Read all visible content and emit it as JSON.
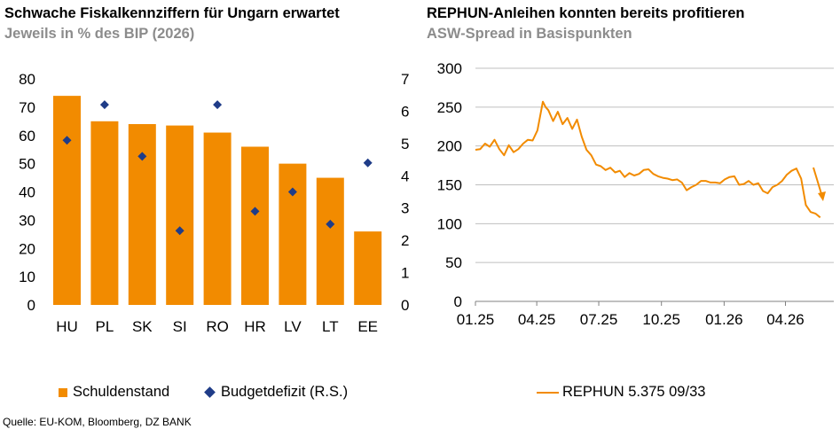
{
  "left_chart": {
    "title": "Schwache Fiskalkennziffern für Ungarn erwartet",
    "subtitle": "Jeweils in % des BIP (2026)"
  },
  "right_chart": {
    "title": "REPHUN-Anleihen konnten bereits profitieren",
    "subtitle": "ASW-Spread in Basispunkten"
  },
  "legend": {
    "debt": "Schuldenstand",
    "deficit": "Budgetdefizit (R.S.)",
    "series": "REPHUN 5.375 09/33"
  },
  "source": "Quelle: EU-KOM, Bloomberg, DZ BANK",
  "colors": {
    "bar": "#f28b00",
    "diamond": "#1f3c88",
    "line": "#f28b00",
    "grid": "#bfbfbf"
  },
  "chart_data": [
    {
      "type": "bar",
      "categories": [
        "HU",
        "PL",
        "SK",
        "SI",
        "RO",
        "HR",
        "LV",
        "LT",
        "EE"
      ],
      "series": [
        {
          "name": "Schuldenstand",
          "axis": "left",
          "values": [
            74,
            65,
            64,
            63.5,
            61,
            56,
            50,
            45,
            26
          ]
        },
        {
          "name": "Budgetdefizit (R.S.)",
          "axis": "right",
          "marker": "diamond",
          "values": [
            5.1,
            6.2,
            4.6,
            2.3,
            6.2,
            2.9,
            3.5,
            2.5,
            4.4
          ]
        }
      ],
      "ylim": [
        0,
        80
      ],
      "yticks": [
        0,
        10,
        20,
        30,
        40,
        50,
        60,
        70,
        80
      ],
      "y2lim": [
        0,
        7
      ],
      "y2ticks": [
        0,
        1,
        2,
        3,
        4,
        5,
        6,
        7
      ],
      "grid": false,
      "legend_position": "bottom"
    },
    {
      "type": "line",
      "series": [
        {
          "name": "REPHUN 5.375 09/33",
          "x": [
            "2025-01-01",
            "2025-01-08",
            "2025-01-15",
            "2025-01-22",
            "2025-01-29",
            "2025-02-05",
            "2025-02-12",
            "2025-02-19",
            "2025-02-26",
            "2025-03-05",
            "2025-03-12",
            "2025-03-19",
            "2025-03-26",
            "2025-04-02",
            "2025-04-07",
            "2025-04-10",
            "2025-04-14",
            "2025-04-18",
            "2025-04-25",
            "2025-05-02",
            "2025-05-09",
            "2025-05-16",
            "2025-05-23",
            "2025-05-30",
            "2025-06-06",
            "2025-06-13",
            "2025-06-20",
            "2025-06-27",
            "2025-07-04",
            "2025-07-11",
            "2025-07-18",
            "2025-07-25",
            "2025-08-01",
            "2025-08-08",
            "2025-08-15",
            "2025-08-22",
            "2025-08-29",
            "2025-09-05",
            "2025-09-12",
            "2025-09-19",
            "2025-09-26",
            "2025-10-03",
            "2025-10-10",
            "2025-10-17",
            "2025-10-24",
            "2025-10-31",
            "2025-11-07",
            "2025-11-14",
            "2025-11-21",
            "2025-11-28",
            "2025-12-05",
            "2025-12-12",
            "2025-12-19",
            "2025-12-26",
            "2026-01-02",
            "2026-01-09",
            "2026-01-16",
            "2026-01-23",
            "2026-01-30",
            "2026-02-06",
            "2026-02-13",
            "2026-02-20",
            "2026-02-27",
            "2026-03-06",
            "2026-03-13",
            "2026-03-20",
            "2026-03-27",
            "2026-04-03",
            "2026-04-10",
            "2026-04-17",
            "2026-04-24",
            "2026-05-01",
            "2026-05-08",
            "2026-05-15",
            "2026-05-22"
          ],
          "values": [
            195,
            196,
            203,
            199,
            208,
            196,
            188,
            201,
            192,
            196,
            203,
            208,
            207,
            220,
            243,
            257,
            250,
            246,
            232,
            244,
            228,
            236,
            222,
            234,
            212,
            195,
            188,
            176,
            174,
            169,
            172,
            166,
            168,
            160,
            165,
            162,
            164,
            169,
            170,
            164,
            161,
            159,
            158,
            156,
            157,
            153,
            143,
            147,
            150,
            155,
            155,
            153,
            153,
            152,
            157,
            160,
            161,
            150,
            151,
            155,
            150,
            152,
            142,
            139,
            147,
            150,
            155,
            163,
            168,
            171,
            158,
            124,
            115,
            113,
            108
          ]
        }
      ],
      "xticks": [
        "01.25",
        "04.25",
        "07.25",
        "10.25",
        "01.26",
        "04.26"
      ],
      "ylim": [
        0,
        300
      ],
      "yticks": [
        0,
        50,
        100,
        150,
        200,
        250,
        300
      ],
      "grid": true,
      "annotation": "arrow",
      "legend_position": "bottom"
    }
  ]
}
